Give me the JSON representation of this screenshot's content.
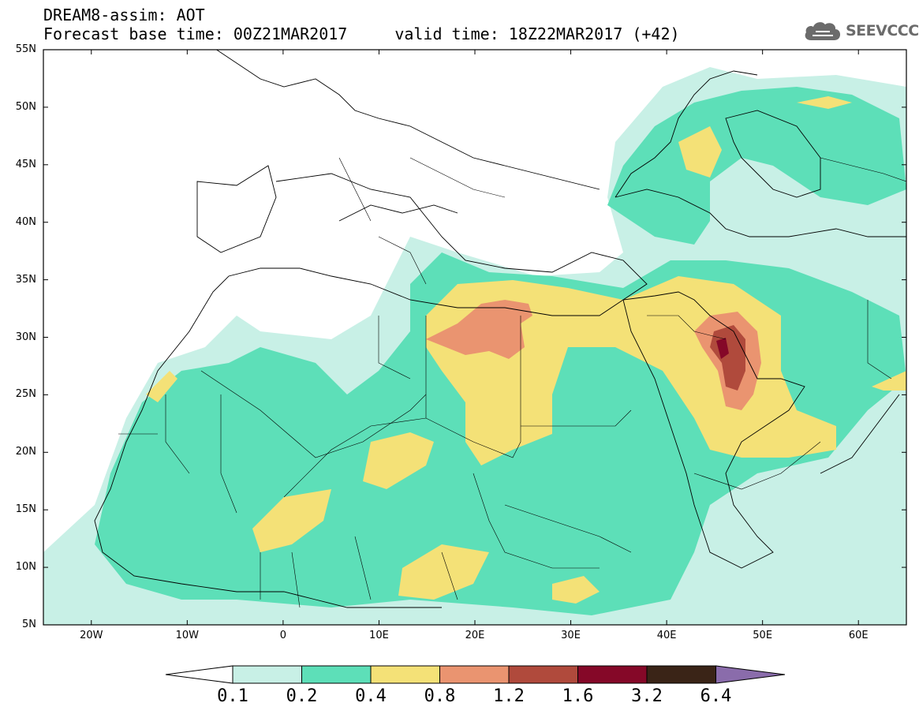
{
  "header": {
    "title": "DREAM8-assim: AOT",
    "base_time": "Forecast base time: 00Z21MAR2017",
    "valid_time": "valid time: 18Z22MAR2017 (+42)"
  },
  "logo": {
    "text": "SEEVCCC",
    "icon": "cloud-icon"
  },
  "map": {
    "lon_range": [
      -25,
      65
    ],
    "lat_range": [
      5,
      55
    ],
    "lat_labels": [
      "55N",
      "50N",
      "45N",
      "40N",
      "35N",
      "30N",
      "25N",
      "20N",
      "15N",
      "10N",
      "5N"
    ],
    "lon_labels": [
      "20W",
      "10W",
      "0",
      "10E",
      "20E",
      "30E",
      "40E",
      "50E",
      "60E"
    ]
  },
  "colorbar": {
    "colors": [
      "#c8f0e6",
      "#5ddfb8",
      "#f4e177",
      "#ea9470",
      "#b04a3c",
      "#850828",
      "#3a2417"
    ],
    "end_colors": {
      "low": "#ffffff",
      "high": "#8a6cab"
    },
    "labels": [
      "0.1",
      "0.2",
      "0.4",
      "0.8",
      "1.2",
      "1.6",
      "3.2",
      "6.4"
    ]
  }
}
